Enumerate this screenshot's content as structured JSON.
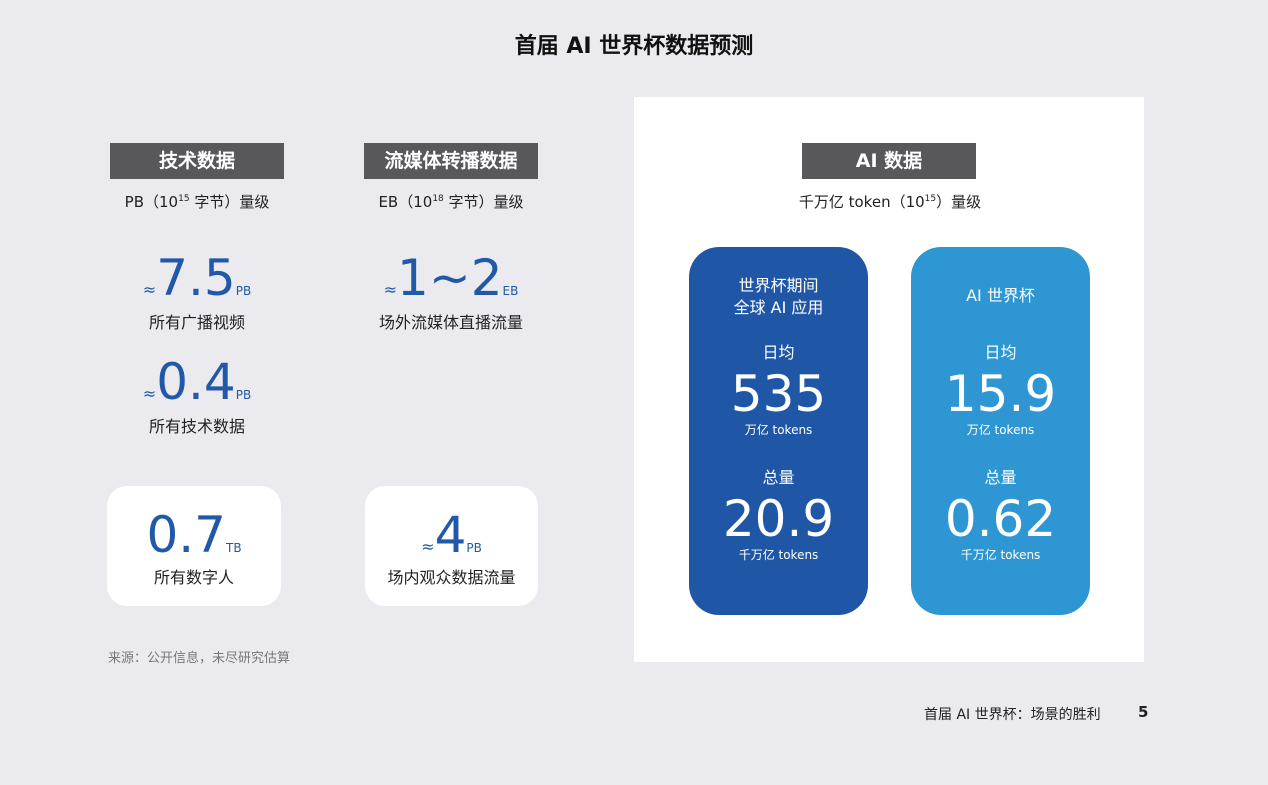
{
  "title": "首届 AI 世界杯数据预测",
  "tech": {
    "label": "技术数据",
    "scale_pre": "PB（10",
    "scale_exp": "15",
    "scale_post": " 字节）量级",
    "stats": [
      {
        "approx": "≈",
        "value": "7.5",
        "unit": "PB",
        "caption": "所有广播视频"
      },
      {
        "approx": "≈",
        "value": "0.4",
        "unit": "PB",
        "caption": "所有技术数据"
      },
      {
        "approx": "",
        "value": "0.7",
        "unit": "TB",
        "caption": "所有数字人"
      }
    ]
  },
  "stream": {
    "label": "流媒体转播数据",
    "scale_pre": "EB（10",
    "scale_exp": "18",
    "scale_post": " 字节）量级",
    "stats": [
      {
        "approx": "≈",
        "value": "1~2",
        "unit": "EB",
        "caption": "场外流媒体直播流量"
      },
      {
        "approx": "≈",
        "value": "4",
        "unit": "PB",
        "caption": "场内观众数据流量"
      }
    ]
  },
  "ai": {
    "label": "AI 数据",
    "scale_pre": "千万亿 token（10",
    "scale_exp": "15",
    "scale_post": "）量级",
    "cards": [
      {
        "title_line1": "世界杯期间",
        "title_line2": "全球 AI 应用",
        "daily_label": "日均",
        "daily_value": "535",
        "daily_unit": "万亿 tokens",
        "total_label": "总量",
        "total_value": "20.9",
        "total_unit": "千万亿 tokens",
        "color": "#1f57a6"
      },
      {
        "title_line1": "AI 世界杯",
        "title_line2": "",
        "daily_label": "日均",
        "daily_value": "15.9",
        "daily_unit": "万亿 tokens",
        "total_label": "总量",
        "total_value": "0.62",
        "total_unit": "千万亿 tokens",
        "color": "#2e97d3"
      }
    ]
  },
  "source": "来源：公开信息，未尽研究估算",
  "footer": {
    "text": "首届 AI 世界杯：场景的胜利",
    "page": "5"
  }
}
